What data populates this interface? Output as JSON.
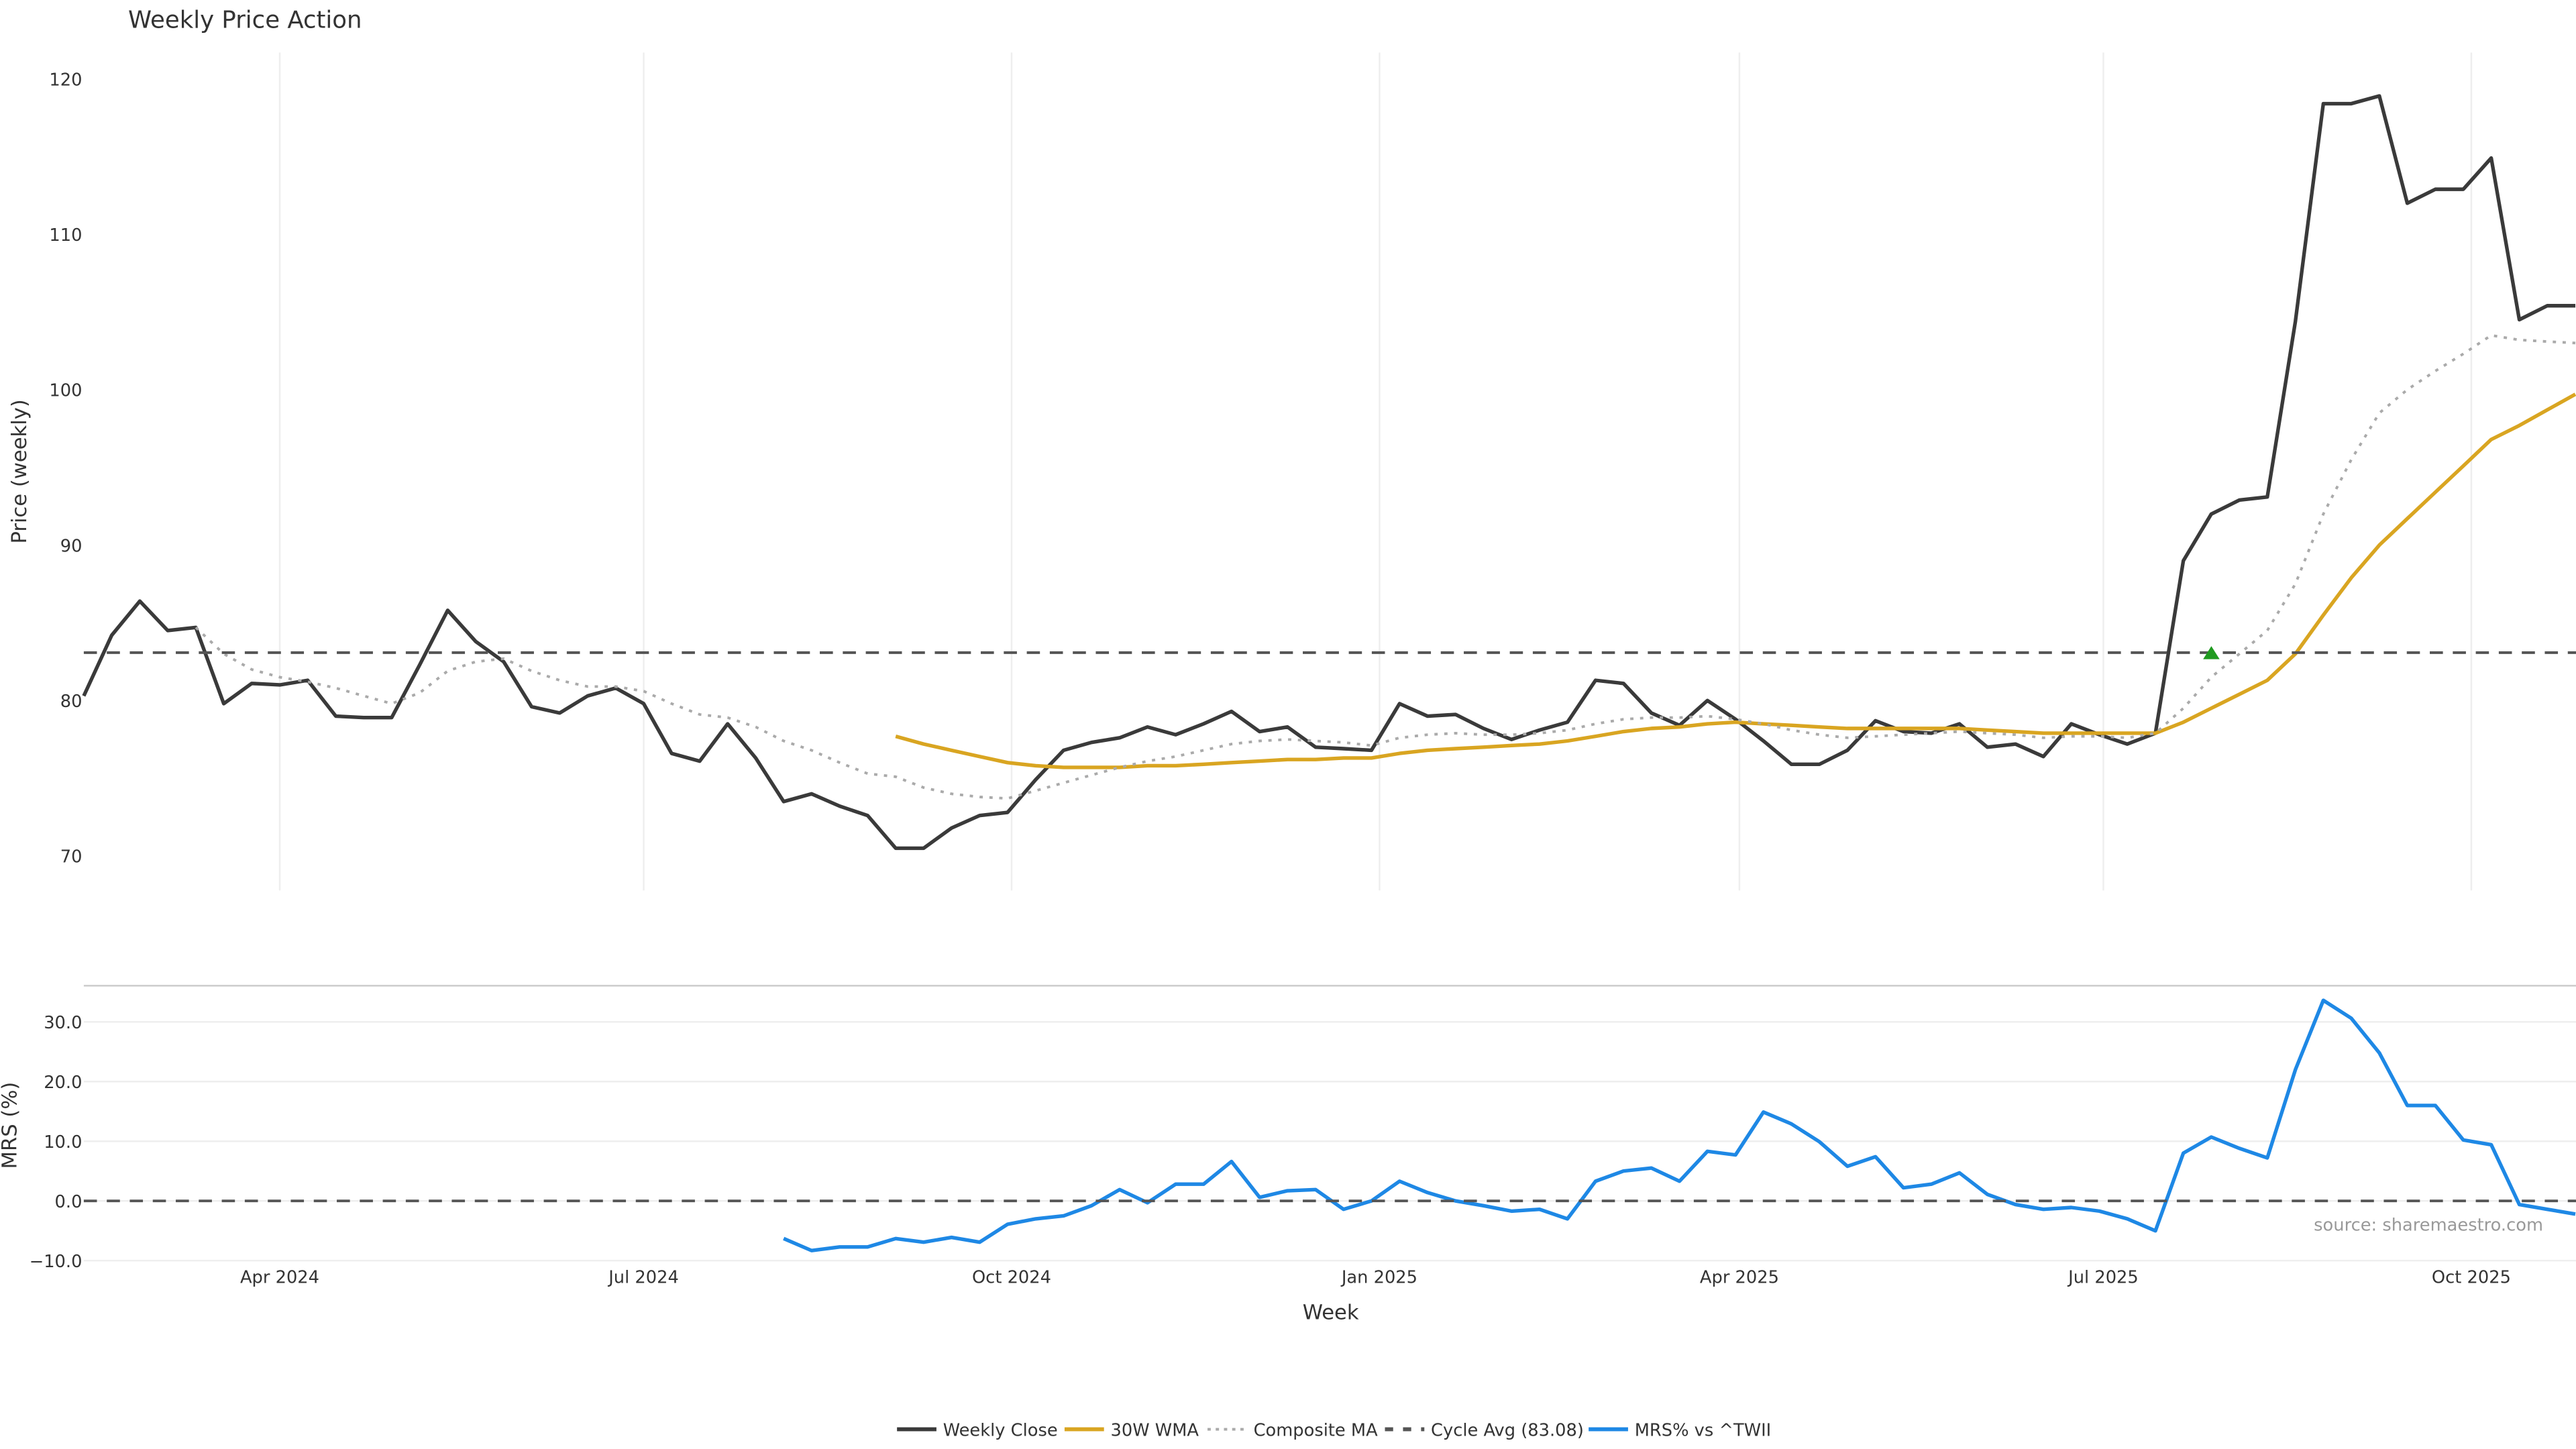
{
  "chart_data": [
    {
      "type": "line",
      "title": "Weekly Price Action",
      "xlabel": "Week",
      "ylabel": "Price (weekly)",
      "ylim": [
        67.5,
        122
      ],
      "yticks": [
        70,
        80,
        90,
        100,
        110,
        120
      ],
      "x_start": "2024-02-12",
      "x_step_days": 7,
      "grid": "vertical",
      "series": [
        {
          "name": "Weekly Close",
          "color": "#3a3a3a",
          "style": "solid",
          "start_index": 0,
          "values": [
            80.3,
            84.2,
            86.4,
            84.5,
            84.7,
            79.8,
            81.1,
            81.0,
            81.3,
            79.0,
            78.9,
            78.9,
            82.3,
            85.8,
            83.8,
            82.5,
            79.6,
            79.2,
            80.3,
            80.8,
            79.8,
            76.6,
            76.1,
            78.5,
            76.3,
            73.5,
            74.0,
            73.2,
            72.6,
            70.5,
            70.5,
            71.8,
            72.6,
            72.8,
            74.9,
            76.8,
            77.3,
            77.6,
            78.3,
            77.8,
            78.5,
            79.3,
            78.0,
            78.3,
            77.0,
            76.9,
            76.8,
            79.8,
            79.0,
            79.1,
            78.2,
            77.5,
            78.1,
            78.6,
            81.3,
            81.1,
            79.2,
            78.4,
            80.0,
            78.8,
            77.4,
            75.9,
            75.9,
            76.8,
            78.7,
            78.0,
            77.9,
            78.5,
            77.0,
            77.2,
            76.4,
            78.5,
            77.8,
            77.2,
            77.9,
            89.0,
            92.0,
            92.9,
            93.1,
            104.4,
            118.4,
            118.4,
            118.9,
            112.0,
            112.9,
            112.9,
            114.9,
            104.5,
            105.4,
            105.4
          ]
        },
        {
          "name": "30W WMA",
          "color": "#d9a521",
          "style": "solid",
          "start_index": 29,
          "values": [
            77.7,
            77.2,
            76.8,
            76.4,
            76.0,
            75.8,
            75.7,
            75.7,
            75.7,
            75.8,
            75.8,
            75.9,
            76.0,
            76.1,
            76.2,
            76.2,
            76.3,
            76.3,
            76.6,
            76.8,
            76.9,
            77.0,
            77.1,
            77.2,
            77.4,
            77.7,
            78.0,
            78.2,
            78.3,
            78.5,
            78.6,
            78.5,
            78.4,
            78.3,
            78.2,
            78.2,
            78.2,
            78.2,
            78.2,
            78.1,
            78.0,
            77.9,
            77.9,
            77.9,
            77.9,
            77.9,
            78.6,
            79.5,
            80.4,
            81.3,
            83.0,
            85.5,
            87.9,
            90.0,
            91.7,
            93.4,
            95.1,
            96.8,
            97.7,
            98.7,
            99.7
          ]
        },
        {
          "name": "Composite MA",
          "color": "#aaaaaa",
          "style": "dotted",
          "start_index": 4,
          "values": [
            84.7,
            83.0,
            82.0,
            81.5,
            81.2,
            80.8,
            80.3,
            79.8,
            80.5,
            81.9,
            82.5,
            82.7,
            81.9,
            81.3,
            80.9,
            80.9,
            80.6,
            79.8,
            79.1,
            78.9,
            78.3,
            77.4,
            76.8,
            76.0,
            75.3,
            75.1,
            74.4,
            74.0,
            73.8,
            73.7,
            74.2,
            74.7,
            75.2,
            75.7,
            76.1,
            76.4,
            76.8,
            77.2,
            77.4,
            77.5,
            77.4,
            77.3,
            77.1,
            77.6,
            77.8,
            77.9,
            77.8,
            77.8,
            77.9,
            78.1,
            78.5,
            78.8,
            78.9,
            78.9,
            79.0,
            78.8,
            78.5,
            78.1,
            77.8,
            77.6,
            77.7,
            77.8,
            77.9,
            78.0,
            77.9,
            77.8,
            77.6,
            77.7,
            77.7,
            77.6,
            77.9,
            79.5,
            81.5,
            83.0,
            84.5,
            87.5,
            92.0,
            95.5,
            98.5,
            100.0,
            101.2,
            102.3,
            103.5,
            103.2,
            103.1,
            103.0
          ]
        },
        {
          "name": "Cycle Avg (83.08)",
          "color": "#555555",
          "style": "dashed",
          "constant": 83.08
        }
      ],
      "markers": [
        {
          "type": "triangle-up",
          "color": "#1f9a1f",
          "index": 76,
          "value": 83.08
        }
      ]
    },
    {
      "type": "line",
      "xlabel": "Week",
      "ylabel": "MRS (%)",
      "ylim": [
        -10,
        35
      ],
      "yticks": [
        -10,
        0,
        10,
        20,
        30
      ],
      "ytick_labels": [
        "−10.0",
        "0.0",
        "10.0",
        "20.0",
        "30.0"
      ],
      "grid": "horizontal",
      "series": [
        {
          "name": "MRS% vs ^TWII",
          "color": "#1e88e5",
          "style": "solid",
          "start_index": 25,
          "values": [
            -6.3,
            -8.3,
            -7.7,
            -7.7,
            -6.3,
            -6.9,
            -6.1,
            -6.9,
            -3.9,
            -3.0,
            -2.5,
            -0.8,
            1.9,
            -0.3,
            2.8,
            2.8,
            6.6,
            0.6,
            1.7,
            1.9,
            -1.4,
            0.0,
            3.3,
            1.4,
            0.0,
            -0.8,
            -1.7,
            -1.4,
            -3.0,
            3.3,
            5.0,
            5.5,
            3.3,
            8.3,
            7.7,
            14.9,
            12.9,
            9.9,
            5.8,
            7.4,
            2.2,
            2.8,
            4.7,
            1.1,
            -0.6,
            -1.4,
            -1.1,
            -1.7,
            -3.0,
            -5.0,
            8.0,
            10.7,
            8.8,
            7.2,
            22.0,
            33.6,
            30.6,
            24.8,
            16.0,
            16.0,
            10.2,
            9.4,
            -0.6,
            -1.4,
            -2.2
          ]
        },
        {
          "name": "zero",
          "color": "#555555",
          "style": "dashed",
          "constant": 0
        }
      ]
    }
  ],
  "xticks": [
    {
      "label": "Apr 2024",
      "date": "2024-04-01"
    },
    {
      "label": "Jul 2024",
      "date": "2024-07-01"
    },
    {
      "label": "Oct 2024",
      "date": "2024-10-01"
    },
    {
      "label": "Jan 2025",
      "date": "2025-01-01"
    },
    {
      "label": "Apr 2025",
      "date": "2025-04-01"
    },
    {
      "label": "Jul 2025",
      "date": "2025-07-01"
    },
    {
      "label": "Oct 2025",
      "date": "2025-10-01"
    }
  ],
  "legend": {
    "placement": "bottom-center",
    "items": [
      {
        "label": "Weekly Close",
        "color": "#3a3a3a",
        "style": "solid"
      },
      {
        "label": "30W WMA",
        "color": "#d9a521",
        "style": "solid"
      },
      {
        "label": "Composite MA",
        "color": "#aaaaaa",
        "style": "dotted"
      },
      {
        "label": "Cycle Avg (83.08)",
        "color": "#555555",
        "style": "dashed"
      },
      {
        "label": "MRS% vs ^TWII",
        "color": "#1e88e5",
        "style": "solid"
      }
    ]
  },
  "source": "source: sharemaestro.com"
}
